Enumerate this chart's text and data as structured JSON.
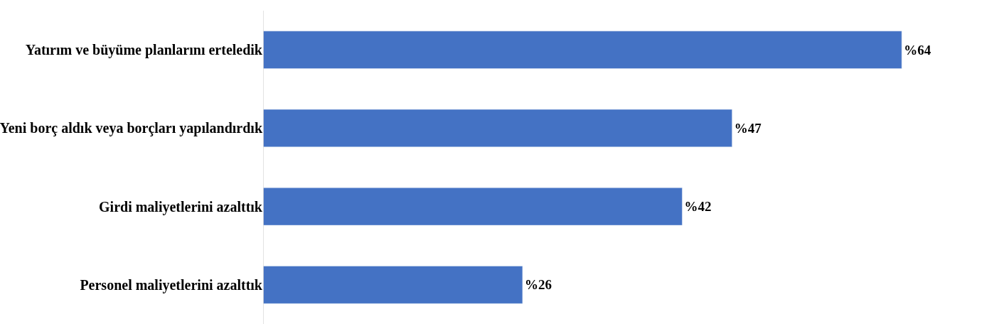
{
  "chart_data": {
    "type": "bar",
    "orientation": "horizontal",
    "categories": [
      "Yatırım ve büyüme planlarını erteledik",
      "Yeni borç aldık veya borçları yapılandırdık",
      "Girdi maliyetlerini azalttık",
      "Personel maliyetlerini azalttık"
    ],
    "values": [
      64,
      47,
      42,
      26
    ],
    "value_labels": [
      "%64",
      "%47",
      "%42",
      "%26"
    ],
    "color": "#4472c4",
    "legend": false
  }
}
